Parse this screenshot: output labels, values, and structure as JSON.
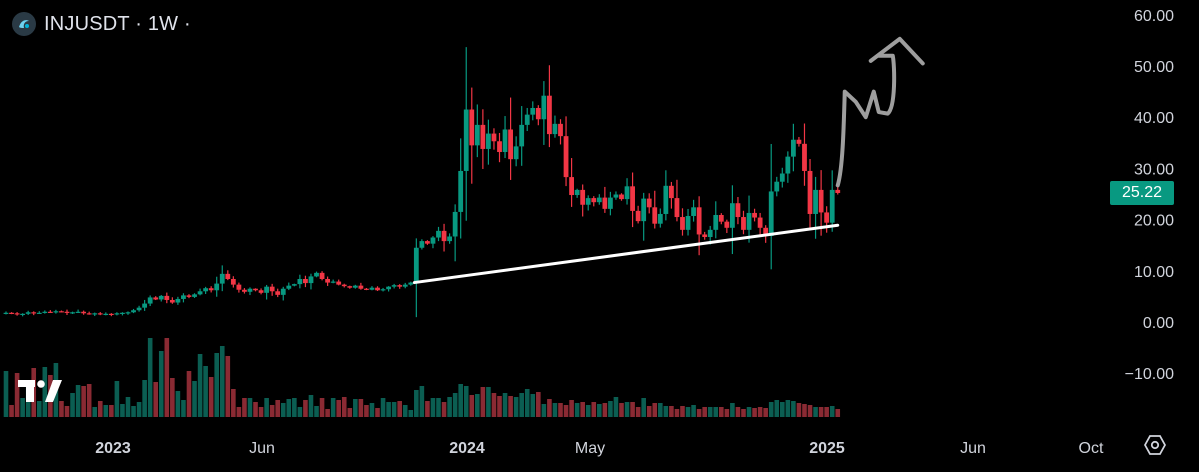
{
  "header": {
    "symbol_title": "INJUSDT · 1W ·"
  },
  "chart_data": {
    "type": "candlestick",
    "title": "INJUSDT · 1W ·",
    "ylim": [
      -17,
      60
    ],
    "y_ticks": [
      "60.00",
      "50.00",
      "40.00",
      "30.00",
      "20.00",
      "10.00",
      "0.00",
      "−10.00"
    ],
    "y_tick_values": [
      60,
      50,
      40,
      30,
      20,
      10,
      0,
      -10
    ],
    "x_ticks": [
      "2023",
      "Jun",
      "2024",
      "May",
      "2025",
      "Jun",
      "Oct"
    ],
    "x_tick_bold": [
      true,
      false,
      true,
      false,
      true,
      false,
      false
    ],
    "last_price": "25.22",
    "colors": {
      "up": "#089981",
      "down": "#f23645",
      "background": "#000000",
      "axis_text": "#d1d4dc",
      "trendline": "#ffffff",
      "drawing": "#9e9e9e"
    },
    "closes": [
      1.8,
      1.7,
      1.5,
      1.6,
      1.9,
      1.7,
      1.8,
      2.0,
      1.9,
      2.1,
      2.0,
      1.8,
      1.9,
      2.0,
      1.7,
      1.6,
      1.7,
      1.5,
      1.6,
      1.5,
      1.7,
      1.8,
      1.9,
      2.3,
      2.8,
      3.6,
      4.8,
      4.4,
      5.1,
      4.3,
      3.8,
      4.5,
      5.2,
      4.9,
      5.4,
      6.0,
      6.6,
      6.2,
      7.5,
      9.4,
      8.4,
      7.3,
      6.3,
      5.9,
      6.5,
      6.2,
      5.7,
      6.9,
      6.0,
      5.3,
      6.5,
      7.1,
      7.4,
      8.4,
      7.6,
      8.9,
      9.6,
      8.4,
      7.7,
      7.9,
      7.3,
      7.0,
      6.7,
      7.1,
      6.5,
      6.3,
      6.7,
      6.2,
      6.4,
      6.9,
      7.2,
      6.9,
      7.3,
      7.7,
      14.5,
      15.8,
      15.3,
      16.5,
      17.8,
      15.8,
      16.7,
      21.5,
      29.5,
      41.5,
      34.5,
      38.5,
      33.8,
      36.8,
      35.3,
      33.2,
      37.6,
      31.8,
      34.3,
      38.5,
      40.5,
      41.8,
      39.6,
      44.2,
      36.7,
      38.7,
      36.3,
      28.3,
      24.8,
      25.8,
      22.9,
      24.2,
      23.4,
      24.3,
      22.1,
      24.3,
      24.9,
      24.0,
      26.5,
      21.7,
      19.7,
      24.1,
      22.4,
      19.2,
      21.1,
      26.6,
      24.2,
      20.5,
      18.0,
      20.7,
      22.4,
      17.1,
      16.6,
      18.0,
      20.9,
      19.6,
      18.4,
      23.2,
      20.5,
      18.0,
      21.3,
      20.4,
      18.4,
      16.8,
      25.5,
      27.4,
      29.0,
      32.3,
      35.6,
      34.8,
      29.5,
      21.1,
      25.8,
      21.4,
      19.4,
      25.8,
      25.2
    ],
    "volumes": [
      46,
      12,
      44,
      19,
      30,
      49,
      16,
      50,
      42,
      54,
      16,
      11,
      24,
      32,
      31,
      33,
      10,
      16,
      12,
      12,
      36,
      13,
      20,
      11,
      15,
      37,
      79,
      35,
      66,
      79,
      39,
      26,
      17,
      46,
      36,
      63,
      51,
      40,
      64,
      71,
      61,
      28,
      10,
      19,
      19,
      15,
      10,
      19,
      12,
      17,
      14,
      18,
      19,
      10,
      17,
      22,
      11,
      19,
      8,
      19,
      17,
      20,
      9,
      18,
      18,
      12,
      14,
      9,
      19,
      15,
      15,
      16,
      12,
      7,
      27,
      31,
      16,
      19,
      19,
      15,
      20,
      24,
      33,
      31,
      22,
      23,
      30,
      30,
      24,
      21,
      24,
      21,
      20,
      24,
      28,
      23,
      25,
      13,
      18,
      14,
      14,
      12,
      17,
      14,
      15,
      12,
      15,
      13,
      14,
      16,
      20,
      14,
      15,
      15,
      10,
      19,
      11,
      14,
      14,
      11,
      11,
      8,
      11,
      10,
      12,
      8,
      10,
      10,
      10,
      10,
      8,
      14,
      10,
      8,
      10,
      9,
      10,
      9,
      15,
      17,
      15,
      17,
      16,
      14,
      13,
      12,
      10,
      10,
      10,
      11,
      8
    ]
  }
}
